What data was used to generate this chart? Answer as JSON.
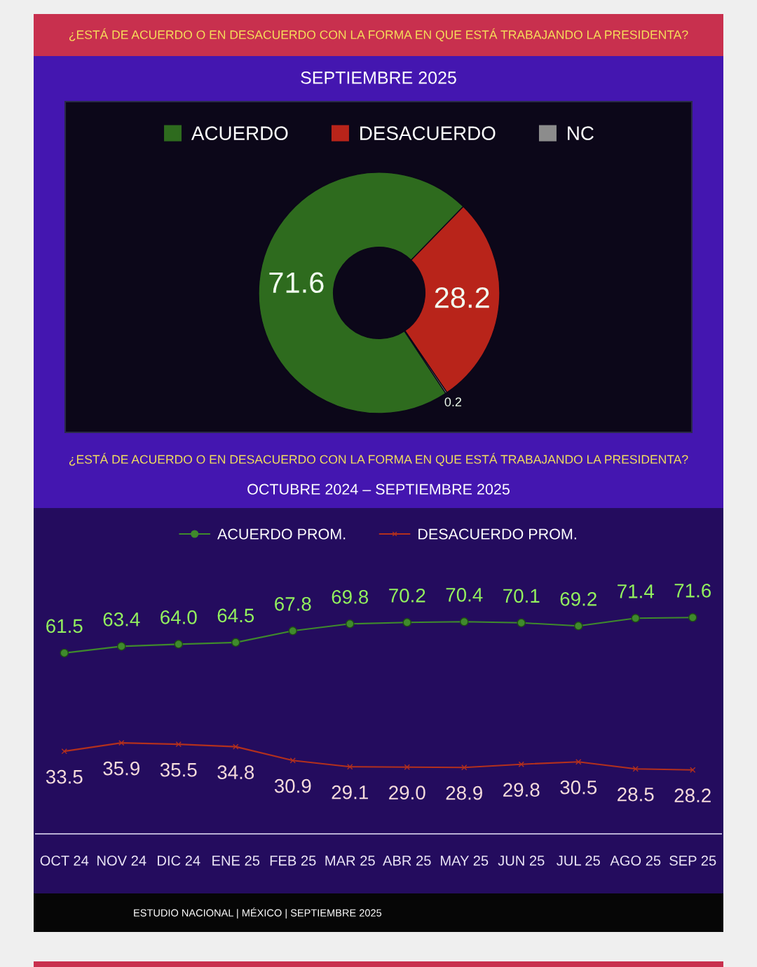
{
  "chart_data": [
    {
      "type": "donut",
      "title": "¿ESTÁ DE ACUERDO O EN DESACUERDO CON LA FORMA EN QUE ESTÁ TRABAJANDO LA PRESIDENTA?",
      "subtitle": "SEPTIEMBRE 2025",
      "categories": [
        "ACUERDO",
        "DESACUERDO",
        "NC"
      ],
      "values": [
        71.6,
        28.2,
        0.2
      ],
      "colors": [
        "#2e6b1e",
        "#b8241a",
        "#8c8c8c"
      ],
      "data_labels": true,
      "legend": "top"
    },
    {
      "type": "line",
      "title": "¿ESTÁ DE ACUERDO O EN DESACUERDO CON LA FORMA EN QUE ESTÁ TRABAJANDO LA PRESIDENTA?",
      "subtitle": "OCTUBRE 2024 – SEPTIEMBRE 2025",
      "categories": [
        "OCT 24",
        "NOV 24",
        "DIC 24",
        "ENE 25",
        "FEB 25",
        "MAR 25",
        "ABR 25",
        "MAY 25",
        "JUN 25",
        "JUL 25",
        "AGO 25",
        "SEP 25"
      ],
      "series": [
        {
          "name": "ACUERDO PROM.",
          "color": "#3f8a2c",
          "marker": "circle",
          "values": [
            61.5,
            63.4,
            64.0,
            64.5,
            67.8,
            69.8,
            70.2,
            70.4,
            70.1,
            69.2,
            71.4,
            71.6
          ],
          "value_labels": [
            "61.5",
            "63.4",
            "64.0",
            "64.5",
            "67.8",
            "69.8",
            "70.2",
            "70.4",
            "70.1",
            "69.2",
            "71.4",
            "71.6"
          ]
        },
        {
          "name": "DESACUERDO PROM.",
          "color": "#b3301d",
          "marker": "cross",
          "values": [
            33.5,
            35.9,
            35.5,
            34.8,
            30.9,
            29.1,
            29.0,
            28.9,
            29.8,
            30.5,
            28.5,
            28.2
          ],
          "value_labels": [
            "33.5",
            "35.9",
            "35.5",
            "34.8",
            "30.9",
            "29.1",
            "29.0",
            "28.9",
            "29.8",
            "30.5",
            "28.5",
            "28.2"
          ]
        }
      ],
      "tick_labels": "x",
      "legend": "top",
      "annotations": [
        "ESTUDIO NACIONAL | MÉXICO | SEPTIEMBRE 2025"
      ]
    }
  ]
}
